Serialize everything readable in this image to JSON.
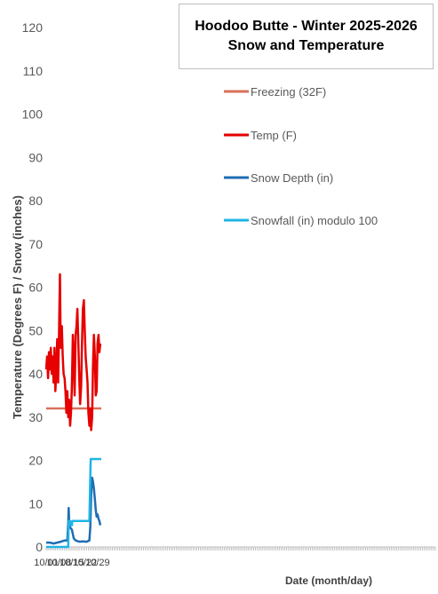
{
  "chart_data": {
    "type": "line",
    "title": "Hoodoo Butte - Winter 2025-2026",
    "subtitle": "Snow and Temperature",
    "xlabel": "Date (month/day)",
    "ylabel": "Temperature (Degrees F)  /  Snow (inches)",
    "ylim": [
      0,
      120
    ],
    "yticks": [
      0,
      10,
      20,
      30,
      40,
      50,
      60,
      70,
      80,
      90,
      100,
      110,
      120
    ],
    "xlim": [
      "2025-10-01",
      "2026-05-01"
    ],
    "xtick_labels": [
      {
        "date": "2025-10-01",
        "label": "10/01"
      },
      {
        "date": "2025-10-08",
        "label": "10/08"
      },
      {
        "date": "2025-10-15",
        "label": "10/15"
      },
      {
        "date": "2025-10-22",
        "label": "10/22"
      },
      {
        "date": "2025-10-29",
        "label": "10/29"
      }
    ],
    "grid": {
      "horizontal": false,
      "vertical": false
    },
    "legend_position": "top-right",
    "series": [
      {
        "name": "Freezing (32F)",
        "color": "#d9705a",
        "points": [
          [
            "2025-10-01",
            32
          ],
          [
            "2025-10-31",
            32
          ]
        ]
      },
      {
        "name": "Temp (F)",
        "color": "#e60000",
        "points": [
          [
            "2025-10-01",
            41
          ],
          [
            "2025-10-01T12",
            44
          ],
          [
            "2025-10-02",
            39
          ],
          [
            "2025-10-02T12",
            45
          ],
          [
            "2025-10-03",
            41
          ],
          [
            "2025-10-03T12",
            46
          ],
          [
            "2025-10-04",
            40
          ],
          [
            "2025-10-04T12",
            44
          ],
          [
            "2025-10-05",
            38
          ],
          [
            "2025-10-05T12",
            46
          ],
          [
            "2025-10-06",
            36
          ],
          [
            "2025-10-06T12",
            41
          ],
          [
            "2025-10-07",
            48
          ],
          [
            "2025-10-07T12",
            38
          ],
          [
            "2025-10-08",
            50
          ],
          [
            "2025-10-08T06",
            57
          ],
          [
            "2025-10-08T12",
            63
          ],
          [
            "2025-10-08T18",
            52
          ],
          [
            "2025-10-09",
            46
          ],
          [
            "2025-10-09T12",
            51
          ],
          [
            "2025-10-10",
            44
          ],
          [
            "2025-10-10T12",
            40
          ],
          [
            "2025-10-11",
            39
          ],
          [
            "2025-10-11T12",
            36
          ],
          [
            "2025-10-12",
            31
          ],
          [
            "2025-10-12T12",
            36
          ],
          [
            "2025-10-13",
            30
          ],
          [
            "2025-10-13T12",
            34
          ],
          [
            "2025-10-14",
            28
          ],
          [
            "2025-10-14T12",
            31
          ],
          [
            "2025-10-15",
            37
          ],
          [
            "2025-10-15T12",
            49
          ],
          [
            "2025-10-16",
            44
          ],
          [
            "2025-10-16T12",
            35
          ],
          [
            "2025-10-17",
            49
          ],
          [
            "2025-10-17T12",
            51
          ],
          [
            "2025-10-18",
            55
          ],
          [
            "2025-10-18T12",
            47
          ],
          [
            "2025-10-19",
            39
          ],
          [
            "2025-10-19T12",
            33
          ],
          [
            "2025-10-20",
            37
          ],
          [
            "2025-10-20T12",
            47
          ],
          [
            "2025-10-21",
            55
          ],
          [
            "2025-10-21T12",
            57
          ],
          [
            "2025-10-22",
            50
          ],
          [
            "2025-10-22T12",
            44
          ],
          [
            "2025-10-23",
            41
          ],
          [
            "2025-10-23T12",
            38
          ],
          [
            "2025-10-24",
            31
          ],
          [
            "2025-10-24T12",
            28
          ],
          [
            "2025-10-25",
            32
          ],
          [
            "2025-10-25T12",
            27
          ],
          [
            "2025-10-26",
            30
          ],
          [
            "2025-10-26T12",
            42
          ],
          [
            "2025-10-27",
            49
          ],
          [
            "2025-10-27T12",
            44
          ],
          [
            "2025-10-28",
            35
          ],
          [
            "2025-10-28T12",
            36
          ],
          [
            "2025-10-29",
            47
          ],
          [
            "2025-10-29T12",
            49
          ],
          [
            "2025-10-30",
            45
          ],
          [
            "2025-10-30T12",
            47
          ]
        ]
      },
      {
        "name": "Snow Depth (in)",
        "color": "#1f6db3",
        "points": [
          [
            "2025-10-01",
            1.0
          ],
          [
            "2025-10-03",
            1.0
          ],
          [
            "2025-10-05",
            0.8
          ],
          [
            "2025-10-07",
            1.0
          ],
          [
            "2025-10-09",
            1.2
          ],
          [
            "2025-10-11",
            1.5
          ],
          [
            "2025-10-12T12",
            1.5
          ],
          [
            "2025-10-13",
            5.5
          ],
          [
            "2025-10-13T06",
            9.0
          ],
          [
            "2025-10-13T12",
            6.0
          ],
          [
            "2025-10-14",
            4.5
          ],
          [
            "2025-10-15",
            4.0
          ],
          [
            "2025-10-16",
            2.0
          ],
          [
            "2025-10-17",
            1.5
          ],
          [
            "2025-10-19",
            1.2
          ],
          [
            "2025-10-21",
            1.3
          ],
          [
            "2025-10-23",
            1.2
          ],
          [
            "2025-10-24T12",
            1.5
          ],
          [
            "2025-10-25",
            4.5
          ],
          [
            "2025-10-25T12",
            12.0
          ],
          [
            "2025-10-26",
            16.0
          ],
          [
            "2025-10-26T12",
            15.0
          ],
          [
            "2025-10-27",
            13.5
          ],
          [
            "2025-10-27T12",
            11.0
          ],
          [
            "2025-10-28",
            8.5
          ],
          [
            "2025-10-28T12",
            7.0
          ],
          [
            "2025-10-29",
            7.5
          ],
          [
            "2025-10-29T12",
            6.5
          ],
          [
            "2025-10-30",
            6.0
          ],
          [
            "2025-10-30T12",
            5.0
          ]
        ]
      },
      {
        "name": "Snowfall (in) modulo 100",
        "color": "#1fb4e6",
        "points": [
          [
            "2025-10-01",
            0
          ],
          [
            "2025-10-13",
            0
          ],
          [
            "2025-10-13T06",
            6
          ],
          [
            "2025-10-14",
            6
          ],
          [
            "2025-10-14T06",
            5
          ],
          [
            "2025-10-15",
            5
          ],
          [
            "2025-10-15T06",
            6
          ],
          [
            "2025-10-24T12",
            6
          ],
          [
            "2025-10-25",
            16
          ],
          [
            "2025-10-25T06",
            20.3
          ],
          [
            "2025-10-31",
            20.3
          ]
        ]
      }
    ]
  }
}
